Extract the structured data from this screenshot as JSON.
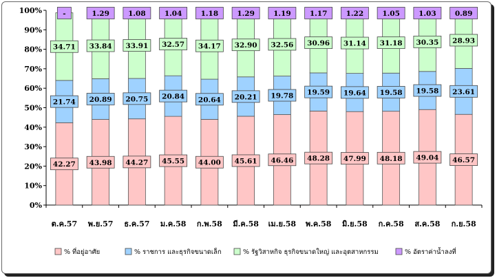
{
  "chart_data": {
    "type": "bar",
    "stacked": true,
    "percent_stacked": true,
    "categories": [
      "ต.ค.57",
      "พ.ย.57",
      "ธ.ค.57",
      "ม.ค.58",
      "ก.พ.58",
      "มี.ค.58",
      "เม.ย.58",
      "พ.ค.58",
      "มิ.ย.58",
      "ก.ค.58",
      "ส.ค.58",
      "ก.ย.58"
    ],
    "series": [
      {
        "name": "% ที่อยู่อาศัย",
        "color": "#ffc6c6",
        "values": [
          42.27,
          43.98,
          44.27,
          45.55,
          44.0,
          45.61,
          46.46,
          48.28,
          47.99,
          48.18,
          49.04,
          46.57
        ],
        "labels": [
          "42.27",
          "43.98",
          "44.27",
          "45.55",
          "44.00",
          "45.61",
          "46.46",
          "48.28",
          "47.99",
          "48.18",
          "49.04",
          "46.57"
        ]
      },
      {
        "name": "% ราชการ และธุรกิจขนาดเล็ก",
        "color": "#9fd2ff",
        "values": [
          21.74,
          20.89,
          20.75,
          20.84,
          20.64,
          20.21,
          19.78,
          19.59,
          19.64,
          19.58,
          19.58,
          23.61
        ],
        "labels": [
          "21.74",
          "20.89",
          "20.75",
          "20.84",
          "20.64",
          "20.21",
          "19.78",
          "19.59",
          "19.64",
          "19.58",
          "19.58",
          "23.61"
        ]
      },
      {
        "name": "% รัฐวิสาหกิจ ธุรกิจขนาดใหญ่ และอุตสาหกรรม",
        "color": "#ccffcc",
        "values": [
          34.71,
          33.84,
          33.91,
          32.57,
          34.17,
          32.9,
          32.56,
          30.96,
          31.14,
          31.18,
          30.35,
          28.93
        ],
        "labels": [
          "34.71",
          "33.84",
          "33.91",
          "32.57",
          "34.17",
          "32.90",
          "32.56",
          "30.96",
          "31.14",
          "31.18",
          "30.35",
          "28.93"
        ]
      },
      {
        "name": "% อัตราค่าน้ำลงที่",
        "color": "#cc99ff",
        "values": [
          0,
          1.29,
          1.08,
          1.04,
          1.18,
          1.29,
          1.19,
          1.17,
          1.22,
          1.05,
          1.03,
          0.89
        ],
        "labels": [
          "-",
          "1.29",
          "1.08",
          "1.04",
          "1.18",
          "1.29",
          "1.19",
          "1.17",
          "1.22",
          "1.05",
          "1.03",
          "0.89"
        ]
      }
    ],
    "y_ticks": [
      "0%",
      "10%",
      "20%",
      "30%",
      "40%",
      "50%",
      "60%",
      "70%",
      "80%",
      "90%",
      "100%"
    ],
    "ylim": [
      0,
      100
    ],
    "grid": false,
    "legend_position": "bottom"
  }
}
